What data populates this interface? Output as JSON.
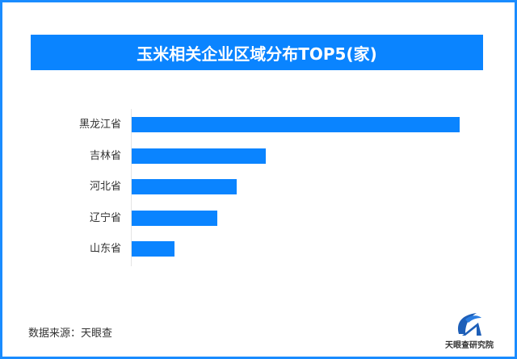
{
  "title": "玉米相关企业区域分布TOP5(家)",
  "colors": {
    "bar": "#0a84ff",
    "title_bg": "#0a84ff",
    "border": "#1a8cff"
  },
  "chart_data": {
    "type": "bar",
    "orientation": "horizontal",
    "title": "玉米相关企业区域分布TOP5(家)",
    "categories": [
      "黑龙江省",
      "吉林省",
      "河北省",
      "辽宁省",
      "山东省"
    ],
    "values": [
      100,
      41,
      32,
      26,
      13
    ],
    "value_note": "relative bar lengths (no axis values shown); largest = 100",
    "xlabel": "",
    "ylabel": "",
    "grid": false,
    "legend": null
  },
  "footer": {
    "source": "数据来源：天眼查",
    "logo_text": "天眼查研究院"
  }
}
